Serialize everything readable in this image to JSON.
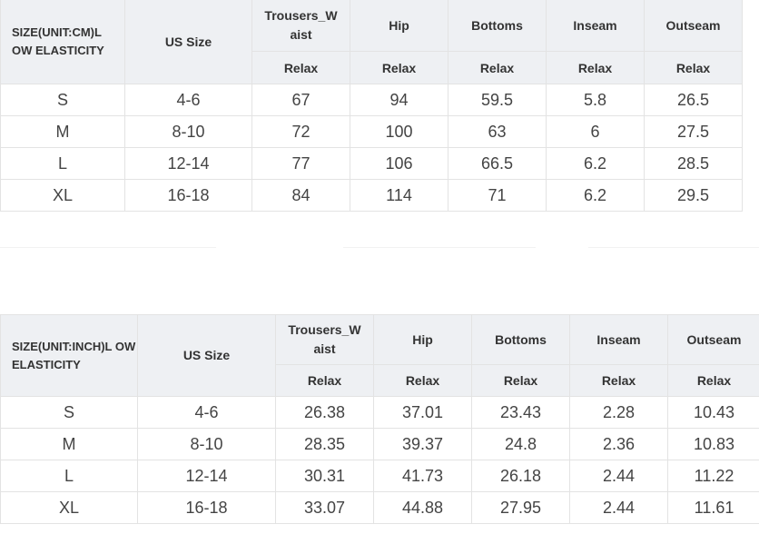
{
  "table_cm": {
    "corner": "SIZE(UNIT:CM)L OW ELASTICITY",
    "columns": [
      "US Size",
      "Trousers_W aist",
      "Hip",
      "Bottoms",
      "Inseam",
      "Outseam"
    ],
    "subheader": "Relax",
    "rows": [
      [
        "S",
        "4-6",
        "67",
        "94",
        "59.5",
        "5.8",
        "26.5"
      ],
      [
        "M",
        "8-10",
        "72",
        "100",
        "63",
        "6",
        "27.5"
      ],
      [
        "L",
        "12-14",
        "77",
        "106",
        "66.5",
        "6.2",
        "28.5"
      ],
      [
        "XL",
        "16-18",
        "84",
        "114",
        "71",
        "6.2",
        "29.5"
      ]
    ]
  },
  "table_inch": {
    "corner": "SIZE(UNIT:INCH)L OW ELASTICITY",
    "columns": [
      "US Size",
      "Trousers_W aist",
      "Hip",
      "Bottoms",
      "Inseam",
      "Outseam"
    ],
    "subheader": "Relax",
    "rows": [
      [
        "S",
        "4-6",
        "26.38",
        "37.01",
        "23.43",
        "2.28",
        "10.43"
      ],
      [
        "M",
        "8-10",
        "28.35",
        "39.37",
        "24.8",
        "2.36",
        "10.83"
      ],
      [
        "L",
        "12-14",
        "30.31",
        "41.73",
        "26.18",
        "2.44",
        "11.22"
      ],
      [
        "XL",
        "16-18",
        "33.07",
        "44.88",
        "27.95",
        "2.44",
        "11.61"
      ]
    ]
  }
}
